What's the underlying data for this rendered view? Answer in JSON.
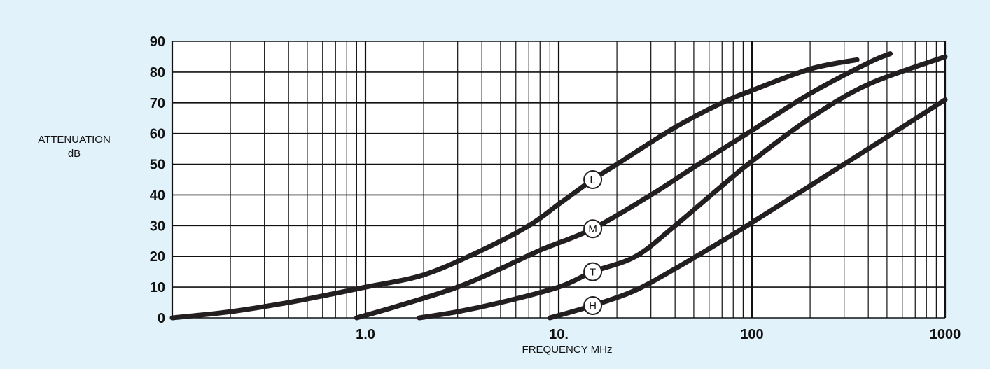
{
  "chart_data": {
    "type": "line",
    "title": "",
    "xlabel": "FREQUENCY MHz",
    "ylabel": [
      "ATTENUATION",
      "dB"
    ],
    "xscale": "log",
    "xlim": [
      0.1,
      1000
    ],
    "ylim": [
      0,
      90
    ],
    "grid": true,
    "xticks": [
      {
        "value": 1,
        "label": "1.0"
      },
      {
        "value": 10,
        "label": "10."
      },
      {
        "value": 100,
        "label": "100"
      },
      {
        "value": 1000,
        "label": "1000"
      }
    ],
    "yticks": [
      {
        "value": 0,
        "label": "0"
      },
      {
        "value": 10,
        "label": "10"
      },
      {
        "value": 20,
        "label": "20"
      },
      {
        "value": 30,
        "label": "30"
      },
      {
        "value": 40,
        "label": "40"
      },
      {
        "value": 50,
        "label": "50"
      },
      {
        "value": 60,
        "label": "60"
      },
      {
        "value": 70,
        "label": "70"
      },
      {
        "value": 80,
        "label": "80"
      },
      {
        "value": 90,
        "label": "90"
      }
    ],
    "series": [
      {
        "name": "L",
        "label_at": [
          15,
          45
        ],
        "points": [
          [
            0.1,
            0
          ],
          [
            0.2,
            2
          ],
          [
            0.4,
            5
          ],
          [
            0.7,
            8
          ],
          [
            1,
            10
          ],
          [
            2,
            14
          ],
          [
            4,
            22
          ],
          [
            7,
            30
          ],
          [
            10,
            37
          ],
          [
            15,
            45
          ],
          [
            20,
            50
          ],
          [
            40,
            62
          ],
          [
            70,
            70
          ],
          [
            100,
            74
          ],
          [
            200,
            81
          ],
          [
            350,
            84
          ]
        ]
      },
      {
        "name": "M",
        "label_at": [
          15,
          29
        ],
        "points": [
          [
            0.9,
            0
          ],
          [
            1.5,
            4
          ],
          [
            3,
            10
          ],
          [
            5,
            16
          ],
          [
            8,
            22
          ],
          [
            15,
            29
          ],
          [
            30,
            40
          ],
          [
            50,
            49
          ],
          [
            100,
            61
          ],
          [
            200,
            73
          ],
          [
            400,
            83
          ],
          [
            520,
            86
          ]
        ]
      },
      {
        "name": "T",
        "label_at": [
          15,
          15
        ],
        "points": [
          [
            1.9,
            0
          ],
          [
            3,
            2
          ],
          [
            5,
            5
          ],
          [
            10,
            10
          ],
          [
            15,
            15
          ],
          [
            25,
            20
          ],
          [
            40,
            30
          ],
          [
            70,
            43
          ],
          [
            100,
            51
          ],
          [
            200,
            65
          ],
          [
            400,
            76
          ],
          [
            1000,
            85
          ]
        ]
      },
      {
        "name": "H",
        "label_at": [
          15,
          4
        ],
        "points": [
          [
            9,
            0
          ],
          [
            15,
            4
          ],
          [
            25,
            9
          ],
          [
            40,
            16
          ],
          [
            70,
            25
          ],
          [
            100,
            31
          ],
          [
            200,
            43
          ],
          [
            400,
            55
          ],
          [
            1000,
            71
          ]
        ]
      }
    ],
    "colors": {
      "background": "#e1f2fb",
      "plot_background": "#ffffff",
      "grid": "#111111",
      "curve": "#231f20"
    }
  }
}
